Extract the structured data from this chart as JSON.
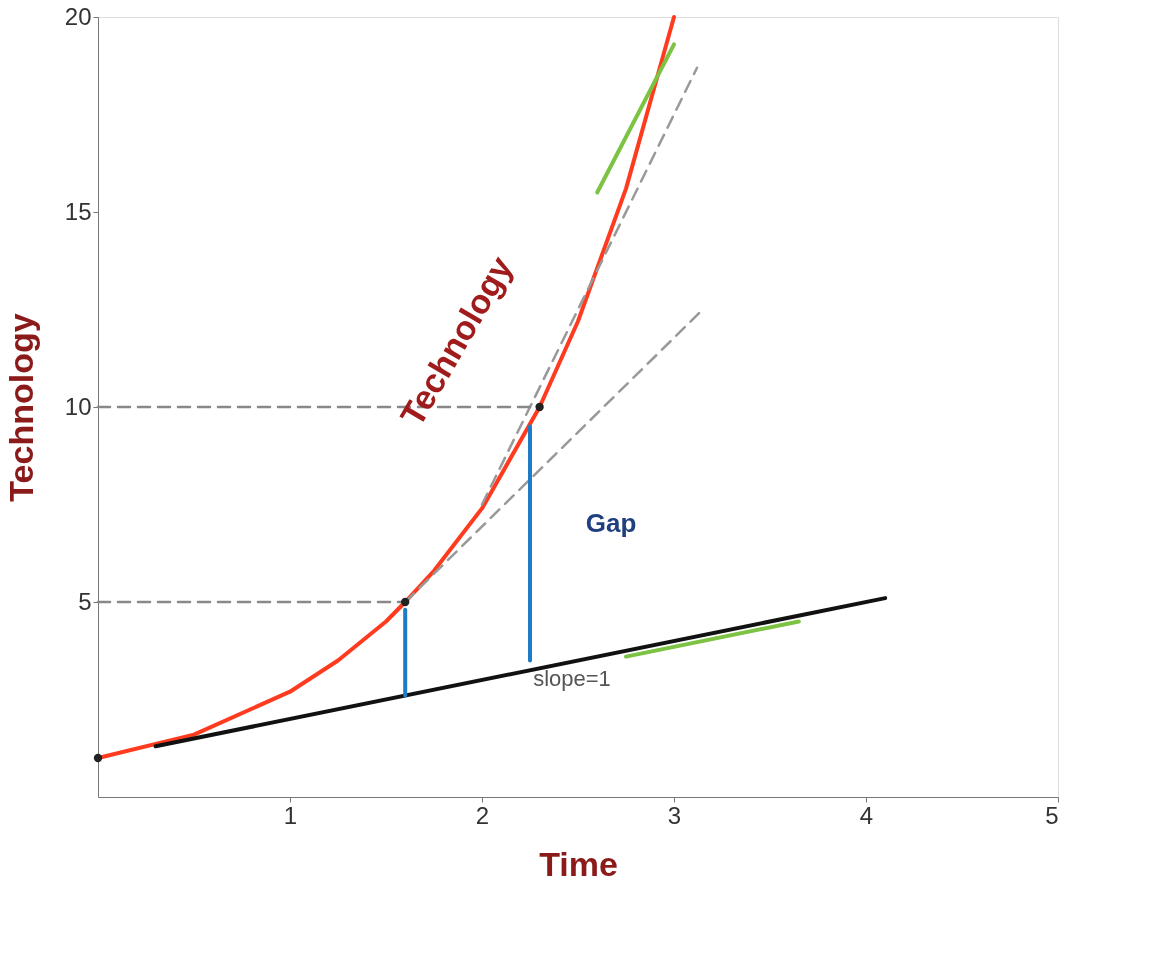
{
  "chart_data": {
    "type": "line",
    "xlabel": "Time",
    "ylabel": "Technology",
    "xlim": [
      0,
      5
    ],
    "ylim": [
      0,
      20
    ],
    "xticks": [
      1,
      2,
      3,
      4,
      5
    ],
    "yticks": [
      5,
      10,
      15,
      20
    ],
    "grid": false,
    "series": [
      {
        "color": "#ff3b1f",
        "x": [
          0,
          0.5,
          1,
          1.25,
          1.5,
          1.6,
          1.75,
          2,
          2.3,
          2.5,
          2.75,
          3
        ],
        "values": [
          1,
          1.6,
          2.7,
          3.5,
          4.5,
          5,
          5.8,
          7.4,
          10,
          12.2,
          15.6,
          20
        ],
        "line_style": "solid"
      },
      {
        "color": "#111111",
        "x": [
          0.3,
          4.1
        ],
        "values": [
          1.3,
          5.1
        ],
        "line_style": "solid"
      },
      {
        "color": "#999999",
        "x": [
          1.6,
          3.15
        ],
        "values": [
          5,
          12.5
        ],
        "line_style": "dashed"
      },
      {
        "color": "#999999",
        "x": [
          2.0,
          3.12
        ],
        "values": [
          7.5,
          18.7
        ],
        "line_style": "dashed"
      },
      {
        "color": "#888888",
        "x": [
          0,
          1.6
        ],
        "values": [
          5,
          5
        ],
        "line_style": "dashed"
      },
      {
        "color": "#888888",
        "x": [
          0,
          2.3
        ],
        "values": [
          10,
          10
        ],
        "line_style": "dashed"
      },
      {
        "color": "#1f7bc4",
        "x": [
          1.6,
          1.6
        ],
        "values": [
          2.6,
          4.8
        ],
        "line_style": "solid"
      },
      {
        "color": "#1f7bc4",
        "x": [
          2.25,
          2.25
        ],
        "values": [
          3.5,
          9.5
        ],
        "line_style": "solid"
      },
      {
        "color": "#7cc243",
        "x": [
          2.6,
          3.0
        ],
        "values": [
          15.5,
          19.3
        ],
        "line_style": "solid"
      },
      {
        "color": "#7cc243",
        "x": [
          2.75,
          3.65
        ],
        "values": [
          3.6,
          4.5
        ],
        "line_style": "solid"
      },
      {
        "type": "scatter",
        "color": "#222222",
        "x": [
          0,
          1.6,
          2.3
        ],
        "values": [
          1,
          5,
          10
        ],
        "marker": "circle"
      }
    ],
    "annotations": [
      "Technology",
      "Gap",
      "slope=1"
    ]
  }
}
